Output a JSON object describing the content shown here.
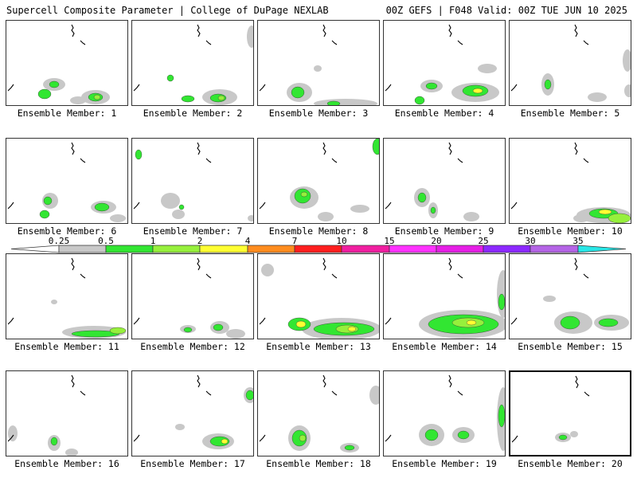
{
  "header": {
    "title": "Supercell Composite Parameter | College of DuPage NEXLAB",
    "run": "00Z GEFS | F048 Valid: 00Z TUE JUN 10 2025"
  },
  "colorbar": {
    "ticks": [
      "0.25",
      "0.5",
      "1",
      "2",
      "4",
      "7",
      "10",
      "15",
      "20",
      "25",
      "30",
      "35"
    ],
    "colors": [
      "#ffffff",
      "#c8c8c8",
      "#32e632",
      "#96f03c",
      "#ffff32",
      "#ff8c1e",
      "#ff1e1e",
      "#f01ea0",
      "#ff32ff",
      "#e61ee6",
      "#8c28ff",
      "#b464e6",
      "#28e6e6"
    ]
  },
  "panel_label_prefix": "Ensemble Member: ",
  "highlighted_member": 20,
  "members": [
    {
      "n": 1,
      "label": "Ensemble Member: 1"
    },
    {
      "n": 2,
      "label": "Ensemble Member: 2"
    },
    {
      "n": 3,
      "label": "Ensemble Member: 3"
    },
    {
      "n": 4,
      "label": "Ensemble Member: 4"
    },
    {
      "n": 5,
      "label": "Ensemble Member: 5"
    },
    {
      "n": 6,
      "label": "Ensemble Member: 6"
    },
    {
      "n": 7,
      "label": "Ensemble Member: 7"
    },
    {
      "n": 8,
      "label": "Ensemble Member: 8"
    },
    {
      "n": 9,
      "label": "Ensemble Member: 9"
    },
    {
      "n": 10,
      "label": "Ensemble Member: 10"
    },
    {
      "n": 11,
      "label": "Ensemble Member: 11"
    },
    {
      "n": 12,
      "label": "Ensemble Member: 12"
    },
    {
      "n": 13,
      "label": "Ensemble Member: 13"
    },
    {
      "n": 14,
      "label": "Ensemble Member: 14"
    },
    {
      "n": 15,
      "label": "Ensemble Member: 15"
    },
    {
      "n": 16,
      "label": "Ensemble Member: 16"
    },
    {
      "n": 17,
      "label": "Ensemble Member: 17"
    },
    {
      "n": 18,
      "label": "Ensemble Member: 18"
    },
    {
      "n": 19,
      "label": "Ensemble Member: 19"
    },
    {
      "n": 20,
      "label": "Ensemble Member: 20"
    }
  ]
}
